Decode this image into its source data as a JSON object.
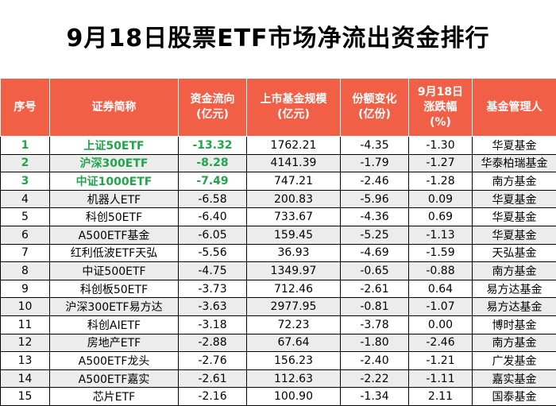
{
  "title": "9月18日股票ETF市场净流出资金排行",
  "headers": [
    [
      "序号"
    ],
    [
      "证券简称"
    ],
    [
      "资金流向",
      "(亿元)"
    ],
    [
      "上市基金规模",
      "(亿元)"
    ],
    [
      "份额变化",
      "(亿份)"
    ],
    [
      "9月18日",
      "涨跌幅",
      "(%)"
    ],
    [
      "基金管理人"
    ]
  ],
  "rows": [
    {
      "rank": "1",
      "name": "上证50ETF",
      "flow": "-13.32",
      "scale": "1762.21",
      "share": "-4.35",
      "change": "-1.30",
      "manager": "华夏基金",
      "top": true
    },
    {
      "rank": "2",
      "name": "沪深300ETF",
      "flow": "-8.28",
      "scale": "4141.39",
      "share": "-1.79",
      "change": "-1.27",
      "manager": "华泰柏瑞基金",
      "top": true
    },
    {
      "rank": "3",
      "name": "中证1000ETF",
      "flow": "-7.49",
      "scale": "747.21",
      "share": "-2.46",
      "change": "-1.28",
      "manager": "南方基金",
      "top": true
    },
    {
      "rank": "4",
      "name": "机器人ETF",
      "flow": "-6.58",
      "scale": "200.83",
      "share": "-5.96",
      "change": "0.09",
      "manager": "华夏基金",
      "top": false
    },
    {
      "rank": "5",
      "name": "科创50ETF",
      "flow": "-6.40",
      "scale": "733.67",
      "share": "-4.36",
      "change": "0.69",
      "manager": "华夏基金",
      "top": false
    },
    {
      "rank": "6",
      "name": "A500ETF基金",
      "flow": "-6.05",
      "scale": "159.45",
      "share": "-5.25",
      "change": "-1.13",
      "manager": "华夏基金",
      "top": false
    },
    {
      "rank": "7",
      "name": "红利低波ETF天弘",
      "flow": "-5.56",
      "scale": "36.93",
      "share": "-4.69",
      "change": "-1.59",
      "manager": "天弘基金",
      "top": false
    },
    {
      "rank": "8",
      "name": "中证500ETF",
      "flow": "-4.75",
      "scale": "1349.97",
      "share": "-0.65",
      "change": "-0.88",
      "manager": "南方基金",
      "top": false
    },
    {
      "rank": "9",
      "name": "科创板50ETF",
      "flow": "-3.73",
      "scale": "712.46",
      "share": "-2.61",
      "change": "0.64",
      "manager": "易方达基金",
      "top": false
    },
    {
      "rank": "10",
      "name": "沪深300ETF易方达",
      "flow": "-3.63",
      "scale": "2977.95",
      "share": "-0.81",
      "change": "-1.07",
      "manager": "易方达基金",
      "top": false
    },
    {
      "rank": "11",
      "name": "科创AIETF",
      "flow": "-3.18",
      "scale": "72.23",
      "share": "-3.78",
      "change": "0.00",
      "manager": "博时基金",
      "top": false
    },
    {
      "rank": "12",
      "name": "房地产ETF",
      "flow": "-2.88",
      "scale": "67.64",
      "share": "-1.80",
      "change": "-2.46",
      "manager": "南方基金",
      "top": false
    },
    {
      "rank": "13",
      "name": "A500ETF龙头",
      "flow": "-2.76",
      "scale": "156.23",
      "share": "-2.40",
      "change": "-1.21",
      "manager": "广发基金",
      "top": false
    },
    {
      "rank": "14",
      "name": "A500ETF嘉实",
      "flow": "-2.61",
      "scale": "112.63",
      "share": "-2.22",
      "change": "-1.11",
      "manager": "嘉实基金",
      "top": false
    },
    {
      "rank": "15",
      "name": "芯片ETF",
      "flow": "-2.16",
      "scale": "100.90",
      "share": "-1.34",
      "change": "2.11",
      "manager": "国泰基金",
      "top": false
    }
  ]
}
